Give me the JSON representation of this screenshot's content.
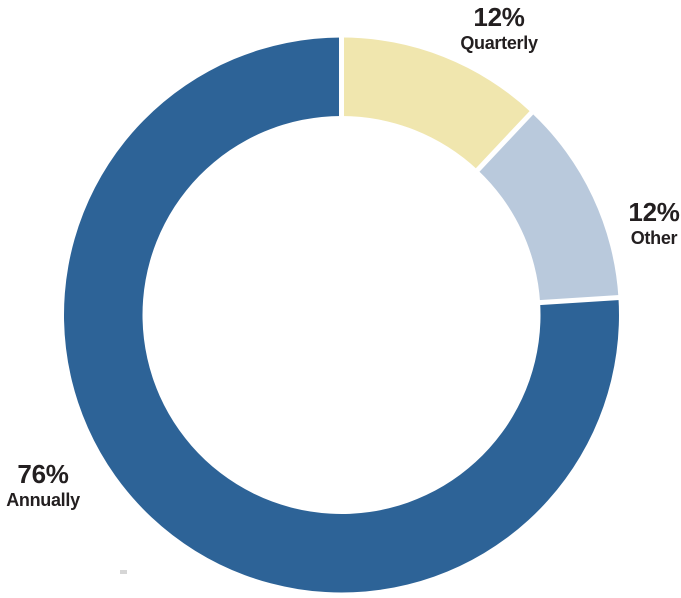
{
  "chart_data": {
    "type": "pie",
    "subtype": "donut",
    "title": "",
    "unit": "%",
    "start_angle_deg": 0,
    "direction": "clockwise",
    "donut_hole_ratio": 0.72,
    "separator_color": "#ffffff",
    "legend_position": "labels-outside",
    "segments": [
      {
        "label": "Quarterly",
        "value": 12,
        "display": "12%",
        "color": "#f0e6ae"
      },
      {
        "label": "Other",
        "value": 12,
        "display": "12%",
        "color": "#b9c9dc"
      },
      {
        "label": "Annually",
        "value": 76,
        "display": "76%",
        "color": "#2d6397"
      }
    ],
    "colors": {
      "text": "#231f20",
      "background": "#ffffff"
    }
  }
}
